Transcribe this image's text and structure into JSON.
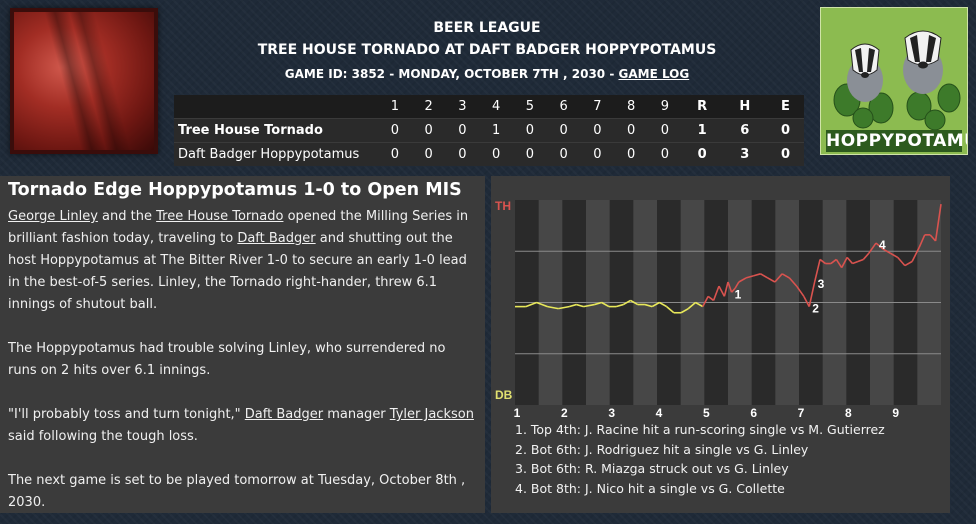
{
  "header": {
    "league": "BEER LEAGUE",
    "matchup": "TREE HOUSE TORNADO AT DAFT BADGER HOPPYPOTAMUS",
    "game_info": "GAME ID: 3852 - MONDAY, OCTOBER 7TH , 2030 - ",
    "game_log_link": "GAME LOG"
  },
  "logos": {
    "home_logo_text": "HOPPYPOTAMUS",
    "away_logo_icon": "tornado-team-logo",
    "home_logo_icon": "badger-hops-logo"
  },
  "linescore": {
    "headers": [
      "1",
      "2",
      "3",
      "4",
      "5",
      "6",
      "7",
      "8",
      "9",
      "R",
      "H",
      "E"
    ],
    "rows": [
      {
        "team": "Tree House Tornado",
        "innings": [
          "0",
          "0",
          "0",
          "1",
          "0",
          "0",
          "0",
          "0",
          "0"
        ],
        "r": "1",
        "h": "6",
        "e": "0"
      },
      {
        "team": "Daft Badger Hoppypotamus",
        "innings": [
          "0",
          "0",
          "0",
          "0",
          "0",
          "0",
          "0",
          "0",
          "0"
        ],
        "r": "0",
        "h": "3",
        "e": "0"
      }
    ]
  },
  "story": {
    "headline": "Tornado Edge Hoppypotamus 1-0 to Open MIS",
    "p1": {
      "link1": "George Linley",
      "t1": " and the ",
      "link2": "Tree House Tornado",
      "t2": " opened the Milling Series in brilliant fashion today, traveling to ",
      "link3": "Daft Badger",
      "t3": " and shutting out the host Hoppypotamus at The Bitter River 1-0 to secure an early 1-0 lead in the best-of-5 series. Linley, the Tornado right-hander, threw 6.1 innings of shutout ball."
    },
    "p2": "The Hoppypotamus had trouble solving Linley, who surrendered no runs on 2 hits over 6.1 innings.",
    "p3": {
      "t1": "\"I'll probably toss and turn tonight,\" ",
      "link1": "Daft Badger",
      "t2": " manager ",
      "link2": "Tyler Jackson",
      "t3": " said following the tough loss."
    },
    "p4": "The next game is set to be played tomorrow at Tuesday, October 8th , 2030."
  },
  "chart_data": {
    "type": "line",
    "top_label": "TH",
    "bottom_label": "DB",
    "innings": [
      "1",
      "2",
      "3",
      "4",
      "5",
      "6",
      "7",
      "8",
      "9"
    ],
    "ylim": [
      0,
      1
    ],
    "colors": {
      "away": "#d9534f",
      "home": "#e8e85a",
      "top_label": "#d9534f",
      "bottom_label": "#e0e070"
    },
    "points": [
      [
        0.0,
        0.52
      ],
      [
        0.03,
        0.52
      ],
      [
        0.06,
        0.5
      ],
      [
        0.09,
        0.52
      ],
      [
        0.12,
        0.53
      ],
      [
        0.15,
        0.52
      ],
      [
        0.17,
        0.51
      ],
      [
        0.19,
        0.52
      ],
      [
        0.22,
        0.51
      ],
      [
        0.24,
        0.5
      ],
      [
        0.26,
        0.52
      ],
      [
        0.28,
        0.52
      ],
      [
        0.3,
        0.51
      ],
      [
        0.32,
        0.49
      ],
      [
        0.34,
        0.51
      ],
      [
        0.36,
        0.51
      ],
      [
        0.38,
        0.52
      ],
      [
        0.4,
        0.5
      ],
      [
        0.42,
        0.52
      ],
      [
        0.44,
        0.55
      ],
      [
        0.46,
        0.55
      ],
      [
        0.48,
        0.53
      ],
      [
        0.5,
        0.5
      ],
      [
        0.52,
        0.52
      ],
      [
        0.535,
        0.47
      ],
      [
        0.55,
        0.49
      ],
      [
        0.565,
        0.42
      ],
      [
        0.58,
        0.47
      ],
      [
        0.59,
        0.4
      ],
      [
        0.6,
        0.45
      ],
      [
        0.61,
        0.43
      ],
      [
        0.62,
        0.4
      ],
      [
        0.64,
        0.38
      ],
      [
        0.66,
        0.37
      ],
      [
        0.68,
        0.36
      ],
      [
        0.7,
        0.38
      ],
      [
        0.72,
        0.4
      ],
      [
        0.74,
        0.36
      ],
      [
        0.76,
        0.38
      ],
      [
        0.78,
        0.42
      ],
      [
        0.8,
        0.47
      ],
      [
        0.815,
        0.52
      ],
      [
        0.83,
        0.4
      ],
      [
        0.845,
        0.29
      ],
      [
        0.86,
        0.31
      ],
      [
        0.875,
        0.31
      ],
      [
        0.89,
        0.29
      ],
      [
        0.905,
        0.33
      ],
      [
        0.92,
        0.28
      ],
      [
        0.935,
        0.31
      ],
      [
        0.95,
        0.3
      ],
      [
        0.965,
        0.29
      ],
      [
        0.98,
        0.26
      ],
      [
        1.0,
        0.21
      ],
      [
        1.02,
        0.24
      ],
      [
        1.04,
        0.26
      ],
      [
        1.06,
        0.28
      ],
      [
        1.08,
        0.32
      ],
      [
        1.1,
        0.3
      ],
      [
        1.12,
        0.23
      ],
      [
        1.135,
        0.17
      ],
      [
        1.15,
        0.17
      ],
      [
        1.165,
        0.2
      ],
      [
        1.18,
        0.02
      ]
    ],
    "annotations": [
      {
        "label": "1",
        "idx": 29
      },
      {
        "label": "2",
        "idx": 41
      },
      {
        "label": "3",
        "idx": 42
      },
      {
        "label": "4",
        "idx": 53
      }
    ],
    "events": [
      "1. Top 4th: J. Racine hit a run-scoring single vs M. Gutierrez",
      "2. Bot 6th: J. Rodriguez hit a single vs G. Linley",
      "3. Bot 6th: R. Miazga struck out vs G. Linley",
      "4. Bot 8th: J. Nico hit a single vs G. Collette"
    ]
  }
}
